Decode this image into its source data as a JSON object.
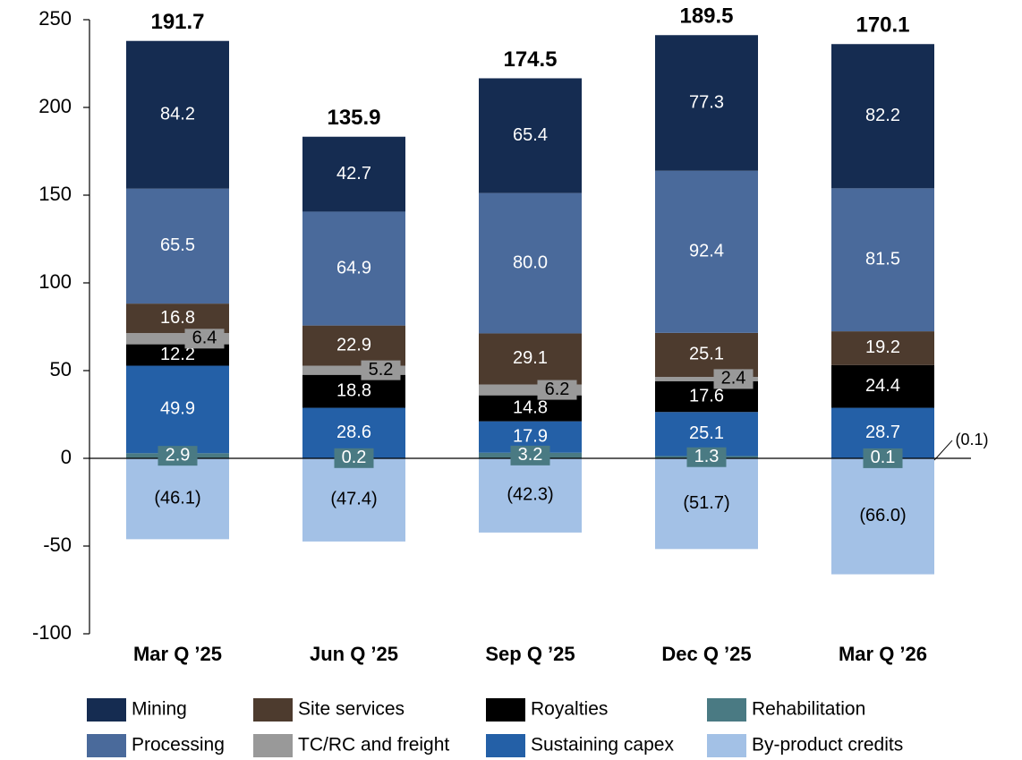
{
  "chart_data": {
    "type": "stacked_bar",
    "categories": [
      "Mar Q ’25",
      "Jun Q ’25",
      "Sep Q ’25",
      "Dec Q ’25",
      "Mar Q ’26"
    ],
    "series": [
      {
        "name": "Mining",
        "color": "#152c51",
        "values": [
          84.2,
          42.7,
          65.4,
          77.3,
          82.2
        ]
      },
      {
        "name": "Site services",
        "color": "#4d3b2e",
        "values": [
          16.8,
          22.9,
          29.1,
          25.1,
          19.2
        ]
      },
      {
        "name": "Royalties",
        "color": "#000000",
        "values": [
          12.2,
          18.8,
          14.8,
          17.6,
          24.4
        ]
      },
      {
        "name": "Rehabilitation",
        "color": "#4a7a83",
        "values": [
          2.9,
          0.2,
          3.2,
          1.3,
          0.1
        ]
      },
      {
        "name": "Processing",
        "color": "#4a6a9b",
        "values": [
          65.5,
          64.9,
          80.0,
          92.4,
          81.5
        ],
        "value_labels": [
          "65.5",
          "64.9",
          "80.0",
          "92.4",
          "81.5"
        ]
      },
      {
        "name": "TC/RC and freight",
        "color": "#999999",
        "values": [
          6.4,
          5.2,
          6.2,
          2.4,
          -0.1
        ],
        "value_labels": [
          "6.4",
          "5.2",
          "6.2",
          "2.4",
          "(0.1)"
        ]
      },
      {
        "name": "Sustaining capex",
        "color": "#2460a7",
        "values": [
          49.9,
          28.6,
          17.9,
          25.1,
          28.7
        ]
      },
      {
        "name": "By-product credits",
        "color": "#a3c1e6",
        "values": [
          -46.1,
          -47.4,
          -42.3,
          -51.7,
          -66.0
        ],
        "value_labels": [
          "(46.1)",
          "(47.4)",
          "(42.3)",
          "(51.7)",
          "(66.0)"
        ]
      }
    ],
    "totals": [
      191.7,
      135.9,
      174.5,
      189.5,
      170.1
    ],
    "ylim": [
      -100,
      250
    ],
    "yticks": [
      -100,
      -50,
      0,
      50,
      100,
      150,
      200,
      250
    ]
  }
}
